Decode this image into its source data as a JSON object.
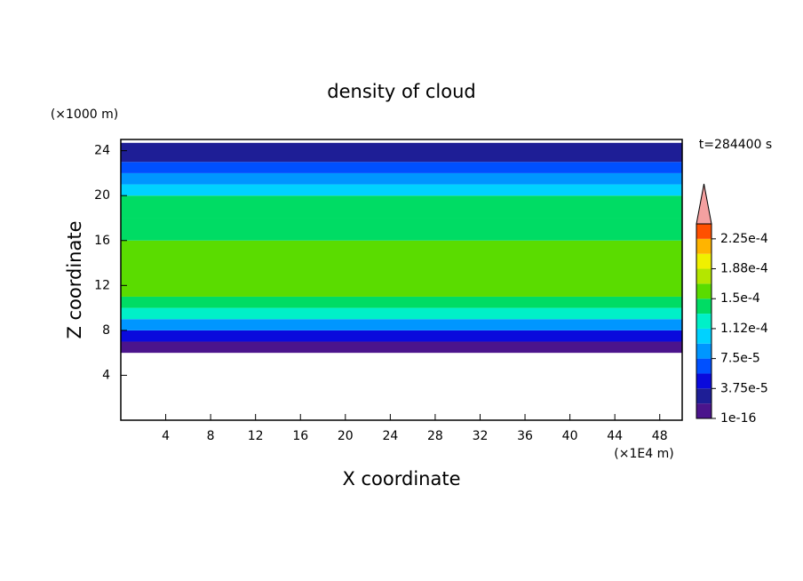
{
  "chart_data": {
    "type": "contour",
    "title": "density of cloud",
    "x_label": "X coordinate",
    "y_label": "Z coordinate",
    "x_unit": "(×1E4 m)",
    "y_unit": "(×1000 m)",
    "time_label": "t=284400 s",
    "xlim": [
      0,
      50
    ],
    "ylim": [
      0,
      25
    ],
    "xticks": [
      4,
      8,
      12,
      16,
      20,
      24,
      28,
      32,
      36,
      40,
      44,
      48
    ],
    "yticks": [
      4,
      8,
      12,
      16,
      20,
      24
    ],
    "field": {
      "z": [
        6,
        7,
        8,
        9,
        10,
        11,
        16,
        18,
        20,
        21,
        22,
        23,
        24.7
      ],
      "values": [
        1e-05,
        5e-05,
        9e-05,
        0.00013,
        0.000145,
        0.00016,
        0.00015,
        0.000135,
        0.00011,
        9e-05,
        6e-05,
        3e-05
      ]
    },
    "clim": [
      1e-16,
      0.00024375
    ],
    "colors": [
      "#4b148c",
      "#1e1e96",
      "#0a0adc",
      "#0050ff",
      "#0096ff",
      "#00d2ff",
      "#00f0c8",
      "#00dc64",
      "#5adc00",
      "#b4e600",
      "#f0f000",
      "#ffb400",
      "#ff5000"
    ],
    "extend_color": "#f4a0a0",
    "cticks": [
      1e-16,
      {
        "value": 3.75e-05,
        "label": "3.75e-5"
      },
      {
        "value": 7.5e-05,
        "label": "7.5e-5"
      },
      {
        "value": 0.0001125,
        "label": "1.12e-4"
      },
      {
        "value": 0.00015,
        "label": "1.5e-4"
      },
      {
        "value": 0.0001875,
        "label": "1.88e-4"
      },
      {
        "value": 0.000225,
        "label": "2.25e-4"
      }
    ]
  }
}
